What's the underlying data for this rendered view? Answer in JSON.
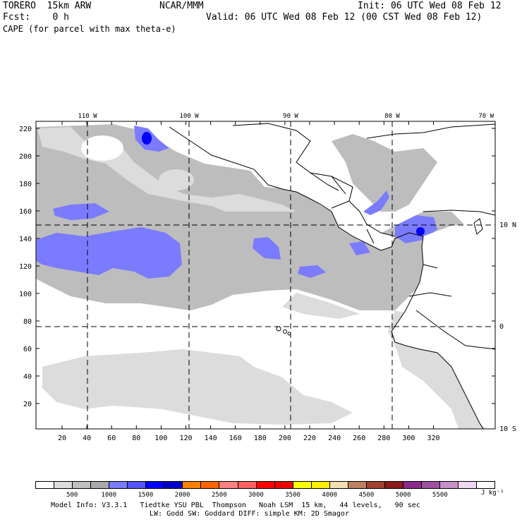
{
  "header": {
    "model": "TORERO  15km ARW",
    "org": "NCAR/MMM",
    "init": "Init: 06 UTC Wed 08 Feb 12",
    "fcst": "Fcst:    0 h",
    "valid": "Valid: 06 UTC Wed 08 Feb 12 (00 CST Wed 08 Feb 12)",
    "field": "CAPE (for parcel with max theta-e)"
  },
  "map": {
    "top_lon_labels": [
      "110 W",
      "100 W",
      "90 W",
      "80 W",
      "70 W"
    ],
    "right_lat_labels": [
      "10 N",
      "0",
      "10 S"
    ],
    "y_ticks": [
      "220",
      "200",
      "180",
      "160",
      "140",
      "120",
      "100",
      "80",
      "60",
      "40",
      "20"
    ],
    "x_ticks": [
      "20",
      "40",
      "60",
      "80",
      "100",
      "120",
      "140",
      "160",
      "180",
      "200",
      "220",
      "240",
      "260",
      "280",
      "300",
      "320"
    ],
    "colors": {
      "light_gray": "#d9d9d9",
      "dark_gray": "#bdbdbd",
      "periwinkle": "#7b7bff",
      "blue": "#0000ff"
    }
  },
  "colorbar": {
    "colors": [
      "#ffffff",
      "#dcdcdc",
      "#c0c0c0",
      "#a8a8a8",
      "#7b7bff",
      "#5555ff",
      "#0000ff",
      "#0000c8",
      "#ff8000",
      "#ff6600",
      "#ff8080",
      "#ff6060",
      "#ff0000",
      "#ee0000",
      "#ffff00",
      "#ffee00",
      "#f5deb3",
      "#c08060",
      "#a04030",
      "#8b1a1a",
      "#8b2a8b",
      "#a050a0",
      "#c890c8",
      "#f0d8f0",
      "#ffffff"
    ],
    "labels": [
      "500",
      "1000",
      "1500",
      "2000",
      "2500",
      "3000",
      "3500",
      "4000",
      "4500",
      "5000",
      "5500"
    ],
    "units": "J kg⁻¹"
  },
  "footer": {
    "line1": "Model Info: V3.3.1   Tiedtke YSU PBL  Thompson   Noah LSM  15 km,   44 levels,   90 sec",
    "line2": "LW: Godd SW: Goddard DIFF: simple KM: 2D Smagor"
  }
}
